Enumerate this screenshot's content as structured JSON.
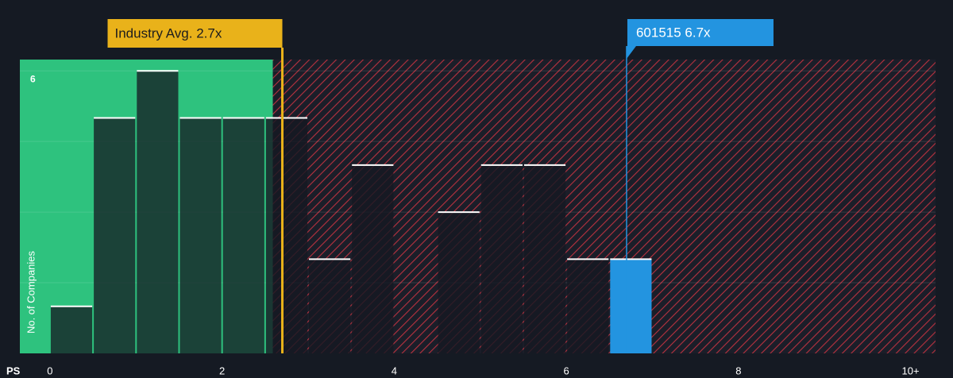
{
  "chart_data": {
    "type": "histogram",
    "xlabel": "PS",
    "ylabel": "No. of Companies",
    "bins": [
      0,
      0.5,
      1,
      1.5,
      2,
      2.5,
      3,
      3.5,
      4,
      4.5,
      5,
      5.5,
      6,
      6.5,
      7,
      7.5,
      8,
      8.5,
      9,
      9.5,
      10
    ],
    "values": [
      1,
      5,
      6,
      5,
      5,
      5,
      2,
      4,
      0,
      3,
      4,
      4,
      2,
      2,
      0,
      0,
      0,
      0,
      0,
      0
    ],
    "highlight_index": 13,
    "highlight_color": "#2394e0",
    "xlim": [
      -0.35,
      10.29
    ],
    "xticks": [
      0,
      2,
      4,
      6,
      8,
      {
        "value": 10,
        "label": "10+"
      }
    ],
    "ylim": [
      0,
      6.24
    ],
    "yticks": [
      6
    ],
    "ygrid": [
      1.5,
      3,
      4.5,
      6
    ],
    "annotations": [
      {
        "text": "Industry Avg. 2.7x",
        "value": 2.7,
        "color": "#e9b21a"
      },
      {
        "text": "601515 6.7x",
        "value": 6.7,
        "color": "#2394e0"
      }
    ]
  }
}
